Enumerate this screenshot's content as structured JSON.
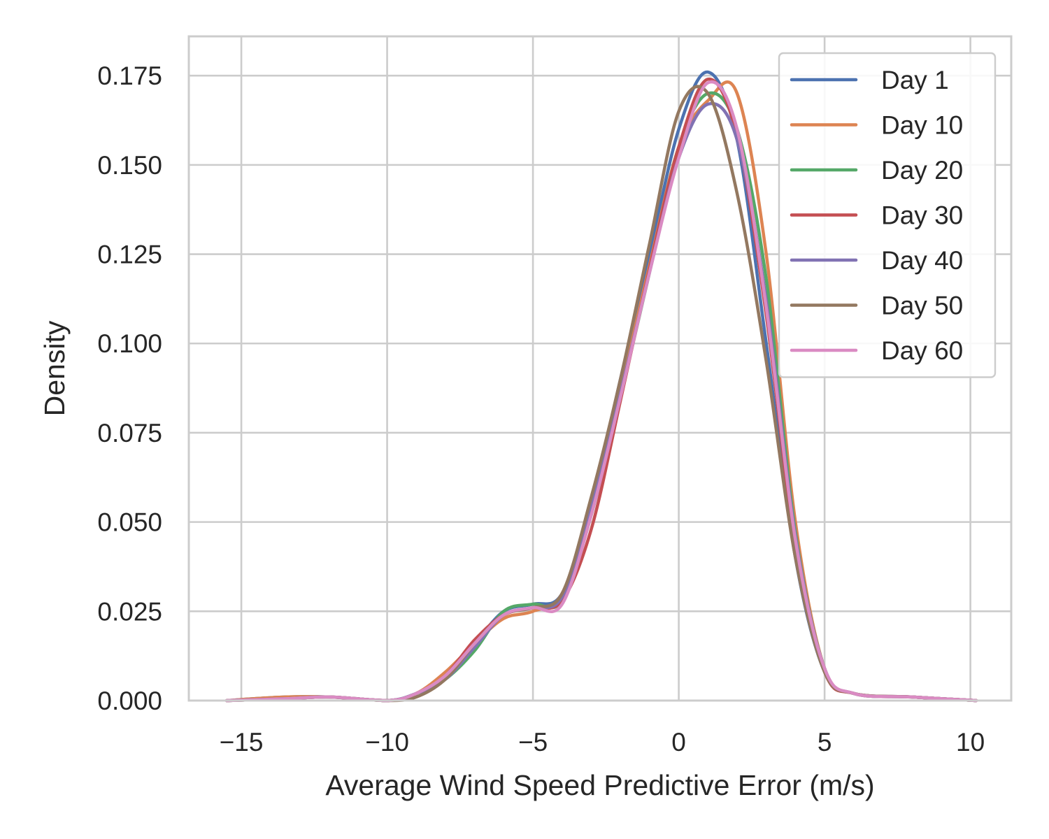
{
  "chart_data": {
    "type": "line",
    "title": "",
    "xlabel": "Average Wind Speed Predictive Error (m/s)",
    "ylabel": "Density",
    "xlim": [
      -16.8,
      11.4
    ],
    "ylim": [
      0,
      0.186
    ],
    "xticks": [
      -15,
      -10,
      -5,
      0,
      5,
      10
    ],
    "xtick_labels": [
      "−15",
      "−10",
      "−5",
      "0",
      "5",
      "10"
    ],
    "yticks": [
      0.0,
      0.025,
      0.05,
      0.075,
      0.1,
      0.125,
      0.15,
      0.175
    ],
    "ytick_labels": [
      "0.000",
      "0.025",
      "0.050",
      "0.075",
      "0.100",
      "0.125",
      "0.150",
      "0.175"
    ],
    "grid": true,
    "legend_position": "top-right",
    "x": [
      -15.5,
      -13.5,
      -12.0,
      -10.0,
      -9.0,
      -8.0,
      -7.0,
      -6.0,
      -5.0,
      -4.0,
      -3.0,
      -2.0,
      -1.0,
      0.0,
      1.0,
      2.0,
      3.0,
      4.0,
      5.0,
      6.0,
      8.0,
      10.2
    ],
    "series": [
      {
        "name": "Day 1",
        "color": "#4c72b0",
        "values": [
          0.0,
          0.001,
          0.001,
          0.0,
          0.002,
          0.007,
          0.016,
          0.025,
          0.027,
          0.03,
          0.055,
          0.09,
          0.125,
          0.16,
          0.176,
          0.157,
          0.1,
          0.04,
          0.008,
          0.002,
          0.001,
          0.0
        ]
      },
      {
        "name": "Day 10",
        "color": "#dd8452",
        "values": [
          0.0,
          0.001,
          0.001,
          0.0,
          0.002,
          0.008,
          0.016,
          0.023,
          0.025,
          0.03,
          0.055,
          0.087,
          0.122,
          0.155,
          0.168,
          0.17,
          0.125,
          0.05,
          0.009,
          0.002,
          0.001,
          0.0
        ]
      },
      {
        "name": "Day 20",
        "color": "#55a868",
        "values": [
          0.0,
          0.0005,
          0.001,
          0.0,
          0.002,
          0.006,
          0.014,
          0.025,
          0.027,
          0.028,
          0.052,
          0.085,
          0.12,
          0.155,
          0.17,
          0.16,
          0.118,
          0.047,
          0.009,
          0.002,
          0.001,
          0.0
        ]
      },
      {
        "name": "Day 30",
        "color": "#c44e52",
        "values": [
          0.0,
          0.0005,
          0.001,
          0.0,
          0.002,
          0.007,
          0.017,
          0.024,
          0.026,
          0.028,
          0.048,
          0.084,
          0.121,
          0.155,
          0.174,
          0.158,
          0.108,
          0.043,
          0.008,
          0.002,
          0.001,
          0.0
        ]
      },
      {
        "name": "Day 40",
        "color": "#8172b3",
        "values": [
          0.0,
          0.0005,
          0.001,
          0.0,
          0.002,
          0.006,
          0.015,
          0.024,
          0.026,
          0.029,
          0.054,
          0.086,
          0.12,
          0.152,
          0.167,
          0.157,
          0.112,
          0.046,
          0.009,
          0.002,
          0.001,
          0.0
        ]
      },
      {
        "name": "Day 50",
        "color": "#937860",
        "values": [
          0.0,
          0.0005,
          0.001,
          0.0,
          0.001,
          0.006,
          0.016,
          0.024,
          0.026,
          0.03,
          0.057,
          0.09,
          0.128,
          0.165,
          0.17,
          0.142,
          0.095,
          0.04,
          0.008,
          0.002,
          0.001,
          0.0
        ]
      },
      {
        "name": "Day 60",
        "color": "#da8bc3",
        "values": [
          0.0,
          0.0005,
          0.001,
          0.0,
          0.002,
          0.007,
          0.016,
          0.024,
          0.026,
          0.027,
          0.052,
          0.085,
          0.12,
          0.152,
          0.173,
          0.16,
          0.11,
          0.045,
          0.009,
          0.002,
          0.001,
          0.0
        ]
      }
    ]
  }
}
